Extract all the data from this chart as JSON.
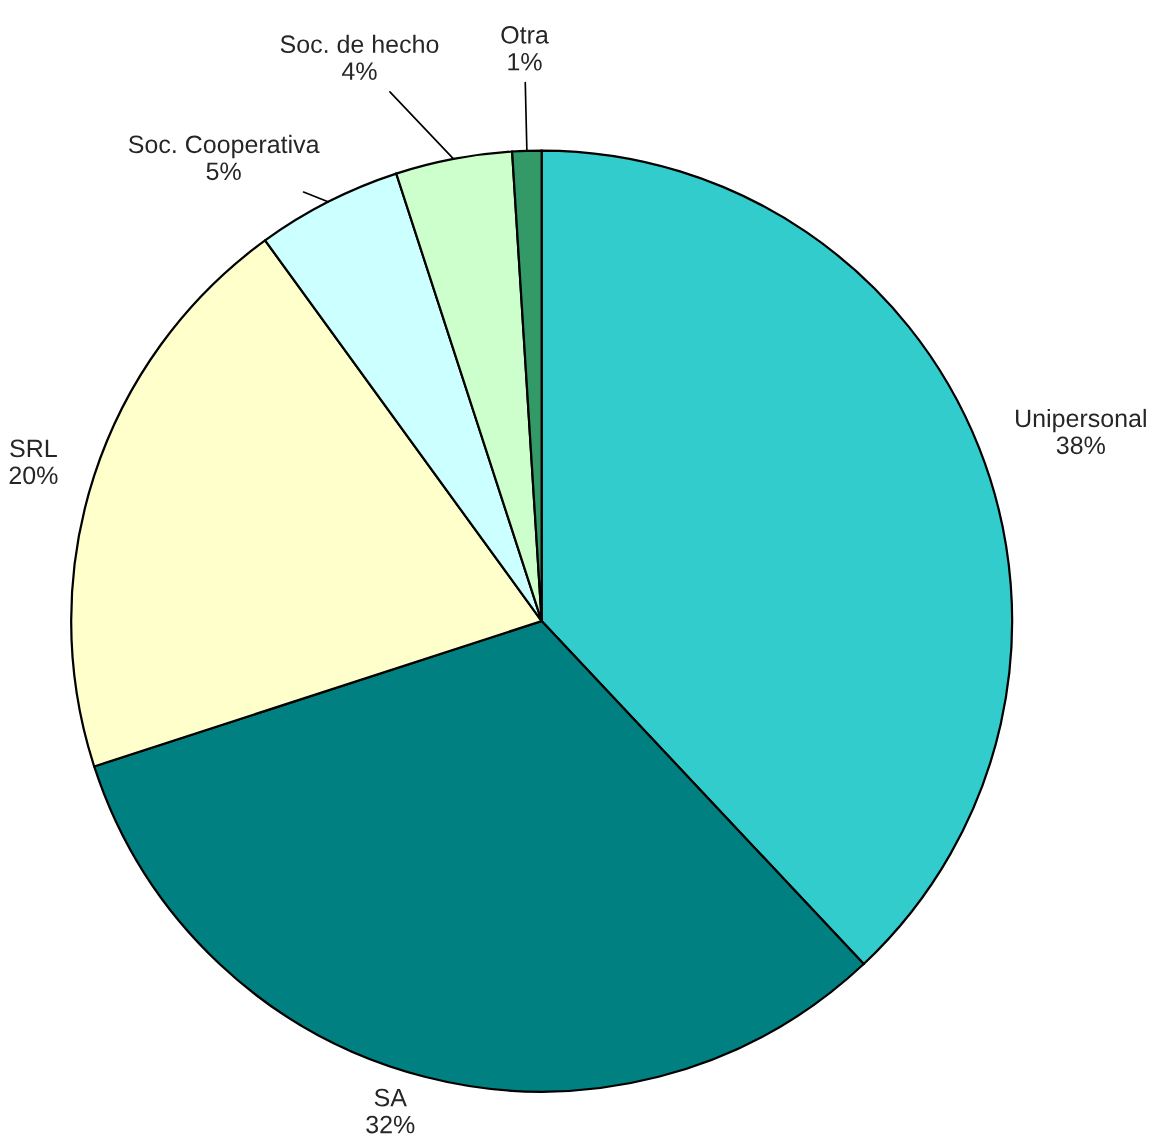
{
  "chart_data": {
    "type": "pie",
    "categories": [
      "Unipersonal",
      "SA",
      "SRL",
      "Soc. Cooperativa",
      "Soc. de hecho",
      "Otra"
    ],
    "values": [
      38,
      32,
      20,
      5,
      4,
      1
    ],
    "value_labels": [
      "38%",
      "32%",
      "20%",
      "5%",
      "4%",
      "1%"
    ],
    "colors": [
      "#33cccc",
      "#008080",
      "#ffffcc",
      "#ccffff",
      "#ccffcc",
      "#339966"
    ]
  }
}
